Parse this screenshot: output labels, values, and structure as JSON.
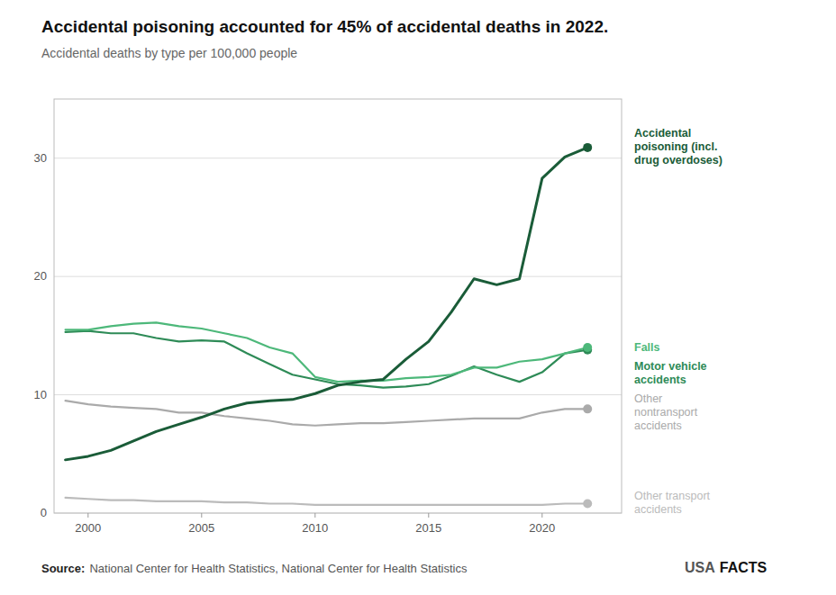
{
  "chart_data": {
    "type": "line",
    "title": "Accidental poisoning accounted for 45% of accidental deaths in 2022.",
    "subtitle": "Accidental deaths by type per 100,000 people",
    "x": [
      1999,
      2000,
      2001,
      2002,
      2003,
      2004,
      2005,
      2006,
      2007,
      2008,
      2009,
      2010,
      2011,
      2012,
      2013,
      2014,
      2015,
      2016,
      2017,
      2018,
      2019,
      2020,
      2021,
      2022
    ],
    "series": [
      {
        "name": "Other transport\naccidents",
        "color": "#bbbbbb",
        "values": [
          1.3,
          1.2,
          1.1,
          1.1,
          1.0,
          1.0,
          1.0,
          0.9,
          0.9,
          0.8,
          0.8,
          0.7,
          0.7,
          0.7,
          0.7,
          0.7,
          0.7,
          0.7,
          0.7,
          0.7,
          0.7,
          0.7,
          0.8,
          0.8
        ]
      },
      {
        "name": "Other\nnontransport\naccidents",
        "color": "#aaaaaa",
        "values": [
          9.5,
          9.2,
          9.0,
          8.9,
          8.8,
          8.5,
          8.5,
          8.2,
          8.0,
          7.8,
          7.5,
          7.4,
          7.5,
          7.6,
          7.6,
          7.7,
          7.8,
          7.9,
          8.0,
          8.0,
          8.0,
          8.5,
          8.8,
          8.8
        ]
      },
      {
        "name": "Motor vehicle\naccidents",
        "color": "#2e8b57",
        "values": [
          15.3,
          15.4,
          15.2,
          15.2,
          14.8,
          14.5,
          14.6,
          14.5,
          13.5,
          12.6,
          11.7,
          11.3,
          10.9,
          10.8,
          10.6,
          10.7,
          10.9,
          11.6,
          12.4,
          11.7,
          11.1,
          11.9,
          13.5,
          13.8
        ]
      },
      {
        "name": "Falls",
        "color": "#4db87a",
        "values": [
          15.5,
          15.5,
          15.8,
          16.0,
          16.1,
          15.8,
          15.6,
          15.2,
          14.8,
          14.0,
          13.5,
          11.5,
          11.1,
          11.2,
          11.2,
          11.4,
          11.5,
          11.7,
          12.3,
          12.3,
          12.8,
          13.0,
          13.5,
          14.0
        ]
      },
      {
        "name": "Accidental\npoisoning (incl.\ndrug overdoses)",
        "color": "#1a5c38",
        "values": [
          4.5,
          4.8,
          5.3,
          6.1,
          6.9,
          7.5,
          8.1,
          8.8,
          9.3,
          9.5,
          9.6,
          10.1,
          10.8,
          11.1,
          11.3,
          13.0,
          14.5,
          17.0,
          19.8,
          19.3,
          19.8,
          28.3,
          30.1,
          30.9
        ]
      }
    ],
    "xlim": [
      1998.5,
      2023.5
    ],
    "xticks": [
      2000,
      2005,
      2010,
      2015,
      2020
    ],
    "ylim": [
      0,
      35
    ],
    "yticks": [
      0,
      10,
      20,
      30
    ],
    "grid": true,
    "annotations": [
      "Source:",
      "National Center for Health Statistics, National Center for Health Statistics",
      "USA",
      "FACTS"
    ]
  }
}
